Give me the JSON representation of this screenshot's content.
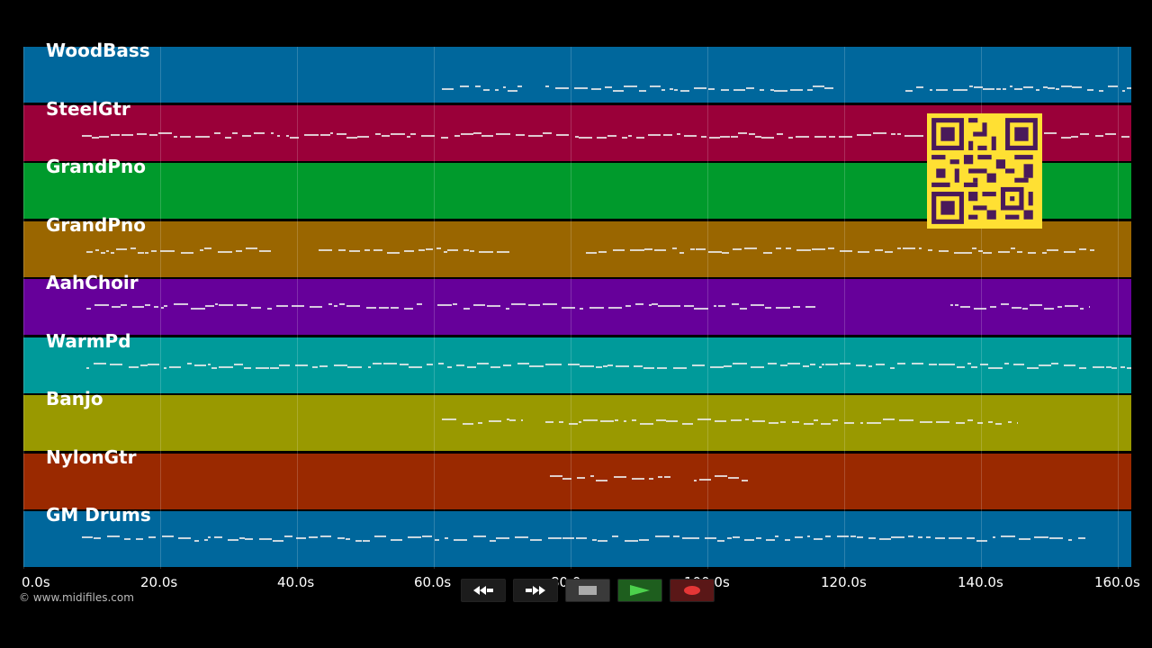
{
  "tracks": [
    {
      "name": "WoodBass",
      "color": "#00679c"
    },
    {
      "name": "SteelGtr",
      "color": "#9a0039"
    },
    {
      "name": "GrandPno",
      "color": "#009a2c"
    },
    {
      "name": "GrandPno",
      "color": "#9a6600"
    },
    {
      "name": "AahChoir",
      "color": "#66009a"
    },
    {
      "name": "WarmPd",
      "color": "#009a9a"
    },
    {
      "name": "Banjo",
      "color": "#999900"
    },
    {
      "name": "NylonGtr",
      "color": "#9a2900"
    },
    {
      "name": "GM Drums",
      "color": "#00679c"
    }
  ],
  "timeline": {
    "ticks": [
      "0.0s",
      "20.0s",
      "40.0s",
      "60.0s",
      "80.0s",
      "100.0s",
      "120.0s",
      "140.0s",
      "160.0s"
    ]
  },
  "footer": {
    "copyright": "© www.midifiles.com"
  },
  "transport": {
    "rewind_icon": "rewind-icon",
    "fast_forward_icon": "fast-forward-icon",
    "stop_icon": "stop-icon",
    "play_icon": "play-icon",
    "record_icon": "record-icon"
  }
}
